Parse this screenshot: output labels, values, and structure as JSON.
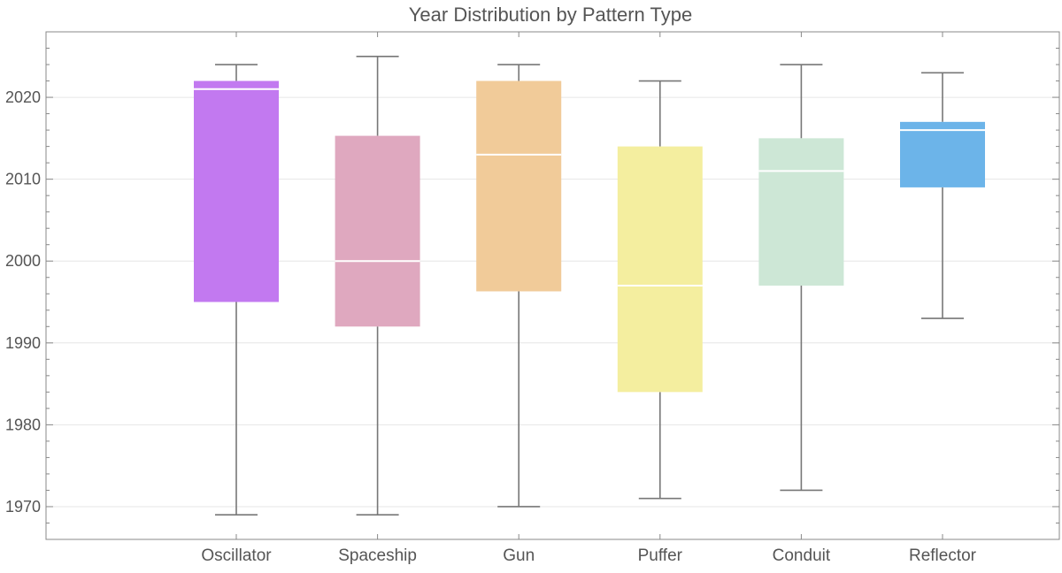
{
  "chart_data": {
    "type": "box",
    "title": "Year Distribution by Pattern Type",
    "xlabel": "",
    "ylabel": "",
    "ylim": [
      1966,
      2028
    ],
    "yticks": [
      1970,
      1980,
      1990,
      2000,
      2010,
      2020
    ],
    "grid": true,
    "categories": [
      "Oscillator",
      "Spaceship",
      "Gun",
      "Puffer",
      "Conduit",
      "Reflector"
    ],
    "boxes": [
      {
        "category": "Oscillator",
        "min": 1969,
        "q1": 1995,
        "median": 2021,
        "q3": 2022,
        "max": 2024,
        "color": "#c279f0"
      },
      {
        "category": "Spaceship",
        "min": 1969,
        "q1": 1992,
        "median": 2000,
        "q3": 2015.3,
        "max": 2025,
        "color": "#dfa8bf"
      },
      {
        "category": "Gun",
        "min": 1970,
        "q1": 1996.3,
        "median": 2013,
        "q3": 2022,
        "max": 2024,
        "color": "#f1cb99"
      },
      {
        "category": "Puffer",
        "min": 1971,
        "q1": 1984,
        "median": 1997,
        "q3": 2014,
        "max": 2022,
        "color": "#f4ee9f"
      },
      {
        "category": "Conduit",
        "min": 1972,
        "q1": 1997,
        "median": 2011,
        "q3": 2015,
        "max": 2024,
        "color": "#cde7d6"
      },
      {
        "category": "Reflector",
        "min": 1993,
        "q1": 2009,
        "median": 2016,
        "q3": 2017,
        "max": 2023,
        "color": "#6cb4e9"
      }
    ]
  }
}
